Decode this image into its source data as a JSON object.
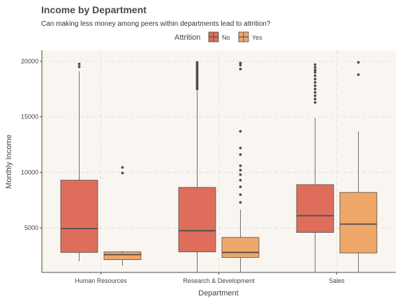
{
  "chart_data": {
    "type": "boxplot",
    "title": "Income by Department",
    "subtitle": "Can making less money among peers within departments lead to attrition?",
    "xlabel": "Department",
    "ylabel": "Monthly Income",
    "ylim": [
      1000,
      21000
    ],
    "y_ticks": [
      5000,
      10000,
      15000,
      20000
    ],
    "legend": {
      "title": "Attrition",
      "position": "top"
    },
    "categories": [
      "Human Resources",
      "Research & Development",
      "Sales"
    ],
    "series": [
      {
        "name": "No",
        "color": "#de6e5b",
        "boxes": [
          {
            "min": 2000,
            "q1": 2800,
            "median": 4950,
            "q3": 9300,
            "max": 19100,
            "outliers": [
              19500,
              19750
            ]
          },
          {
            "min": 1050,
            "q1": 2850,
            "median": 4750,
            "q3": 8650,
            "max": 17300,
            "outliers": [
              17500,
              17650,
              17800,
              17950,
              18100,
              18250,
              18400,
              18550,
              18700,
              18850,
              19000,
              19150,
              19300,
              19450,
              19600,
              19750,
              19900
            ]
          },
          {
            "min": 1050,
            "q1": 4600,
            "median": 6100,
            "q3": 8900,
            "max": 14900,
            "outliers": [
              16300,
              16600,
              16900,
              17200,
              17500,
              17800,
              18100,
              18400,
              18700,
              19000,
              19200,
              19450,
              19700
            ]
          }
        ]
      },
      {
        "name": "Yes",
        "color": "#f0a76a",
        "boxes": [
          {
            "min": 1600,
            "q1": 2150,
            "median": 2600,
            "q3": 2850,
            "max": 2950,
            "outliers": [
              9950,
              10450
            ]
          },
          {
            "min": 1050,
            "q1": 2350,
            "median": 2800,
            "q3": 4150,
            "max": 6650,
            "outliers": [
              7300,
              8000,
              8700,
              9300,
              9800,
              10200,
              10600,
              11600,
              12200,
              13700,
              19300,
              19650,
              19850
            ]
          },
          {
            "min": 1050,
            "q1": 2750,
            "median": 5350,
            "q3": 8200,
            "max": 13700,
            "outliers": [
              18800,
              19900
            ]
          }
        ]
      }
    ]
  }
}
